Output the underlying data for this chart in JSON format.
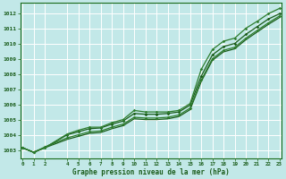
{
  "title": "",
  "xlabel": "Graphe pression niveau de la mer (hPa)",
  "bg_color": "#c2e8e8",
  "grid_color": "#aad4d4",
  "line_color_dark": "#1a5c1a",
  "line_color_mid": "#2e7d2e",
  "xlim_min": -0.2,
  "xlim_max": 23.2,
  "ylim_min": 1002.5,
  "ylim_max": 1012.7,
  "yticks": [
    1003,
    1004,
    1005,
    1006,
    1007,
    1008,
    1009,
    1010,
    1011,
    1012
  ],
  "xticks": [
    0,
    1,
    2,
    4,
    5,
    6,
    7,
    8,
    9,
    10,
    11,
    12,
    13,
    14,
    15,
    16,
    17,
    18,
    19,
    20,
    21,
    22,
    23
  ],
  "series1": {
    "x": [
      0,
      1,
      2,
      4,
      5,
      6,
      7,
      8,
      9,
      10,
      11,
      12,
      13,
      14,
      15,
      16,
      17,
      18,
      19,
      20,
      21,
      22,
      23
    ],
    "y": [
      1003.2,
      1002.9,
      1003.2,
      1004.1,
      1004.35,
      1004.55,
      1004.55,
      1004.85,
      1005.05,
      1005.65,
      1005.55,
      1005.55,
      1005.55,
      1005.65,
      1006.1,
      1008.35,
      1009.65,
      1010.2,
      1010.4,
      1011.05,
      1011.5,
      1012.0,
      1012.35
    ]
  },
  "series2": {
    "x": [
      0,
      1,
      2,
      4,
      5,
      6,
      7,
      8,
      9,
      10,
      11,
      12,
      13,
      14,
      15,
      16,
      17,
      18,
      19,
      20,
      21,
      22,
      23
    ],
    "y": [
      1003.2,
      1002.9,
      1003.2,
      1004.05,
      1004.25,
      1004.45,
      1004.5,
      1004.75,
      1004.95,
      1005.45,
      1005.4,
      1005.4,
      1005.45,
      1005.55,
      1006.0,
      1007.9,
      1009.3,
      1009.85,
      1010.05,
      1010.65,
      1011.15,
      1011.65,
      1012.0
    ]
  },
  "series3": {
    "x": [
      0,
      1,
      2,
      4,
      5,
      6,
      7,
      8,
      9,
      10,
      11,
      12,
      13,
      14,
      15,
      16,
      17,
      18,
      19,
      20,
      21,
      22,
      23
    ],
    "y": [
      1003.2,
      1002.9,
      1003.25,
      1003.85,
      1004.05,
      1004.25,
      1004.3,
      1004.55,
      1004.75,
      1005.2,
      1005.15,
      1005.15,
      1005.2,
      1005.35,
      1005.8,
      1007.65,
      1009.05,
      1009.6,
      1009.8,
      1010.4,
      1010.9,
      1011.4,
      1011.85
    ]
  },
  "series4": {
    "x": [
      0,
      1,
      2,
      4,
      5,
      6,
      7,
      8,
      9,
      10,
      11,
      12,
      13,
      14,
      15,
      16,
      17,
      18,
      19,
      20,
      21,
      22,
      23
    ],
    "y": [
      1003.2,
      1002.9,
      1003.2,
      1003.75,
      1003.95,
      1004.15,
      1004.2,
      1004.45,
      1004.65,
      1005.1,
      1005.05,
      1005.05,
      1005.1,
      1005.25,
      1005.7,
      1007.55,
      1008.95,
      1009.5,
      1009.7,
      1010.3,
      1010.8,
      1011.3,
      1011.75
    ]
  }
}
